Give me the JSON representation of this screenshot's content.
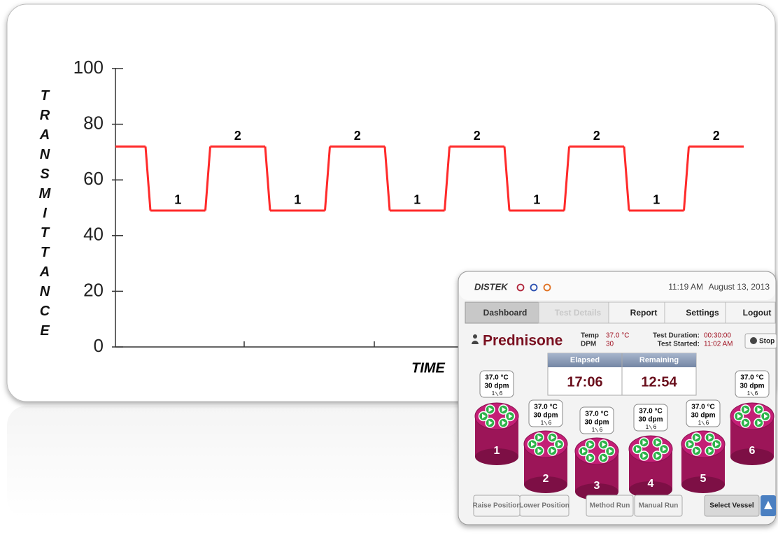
{
  "chart_data": {
    "type": "line",
    "ylabel": "TRANSMITTANCE",
    "xlabel": "TIME",
    "color": "#ff2a2a",
    "ylim": [
      0,
      100
    ],
    "yticks": [
      0,
      20,
      40,
      60,
      80,
      100
    ],
    "categories": [
      null,
      "1",
      "2",
      "1",
      "2",
      "1",
      "2",
      "1",
      "2",
      "1",
      "2"
    ],
    "values": [
      72,
      49,
      72,
      49,
      72,
      49,
      72,
      49,
      72,
      49,
      72
    ]
  },
  "panel": {
    "brand": "DISTEK",
    "time": "11:19 AM",
    "date": "August 13, 2013",
    "tabs": [
      "Dashboard",
      "Test Details",
      "Report",
      "Settings",
      "Logout"
    ],
    "product": "Prednisone",
    "temp_label": "Temp",
    "temp": "37.0 °C",
    "dpm_label": "DPM",
    "dpm": "30",
    "duration_label": "Test Duration:",
    "duration": "00:30:00",
    "started_label": "Test Started:",
    "started": "11:02 AM",
    "stop": "Stop",
    "timers": [
      {
        "label": "Elapsed",
        "value": "17:06"
      },
      {
        "label": "Remaining",
        "value": "12:54"
      }
    ],
    "vessels": [
      {
        "number": "1",
        "temp": "37.0 °C",
        "speed": "30 dpm",
        "position": "1",
        "count": "6"
      },
      {
        "number": "2",
        "temp": "37.0 °C",
        "speed": "30 dpm",
        "position": "1",
        "count": "6"
      },
      {
        "number": "3",
        "temp": "37.0 °C",
        "speed": "30 dpm",
        "position": "1",
        "count": "6"
      },
      {
        "number": "4",
        "temp": "37.0 °C",
        "speed": "30 dpm",
        "position": "1",
        "count": "6"
      },
      {
        "number": "5",
        "temp": "37.0 °C",
        "speed": "30 dpm",
        "position": "1",
        "count": "6"
      },
      {
        "number": "6",
        "temp": "37.0 °C",
        "speed": "30 dpm",
        "position": "1",
        "count": "6"
      }
    ],
    "buttons": [
      "Raise Position",
      "Lower Position",
      "Method Run",
      "Manual Run",
      "Select Vessel"
    ]
  }
}
